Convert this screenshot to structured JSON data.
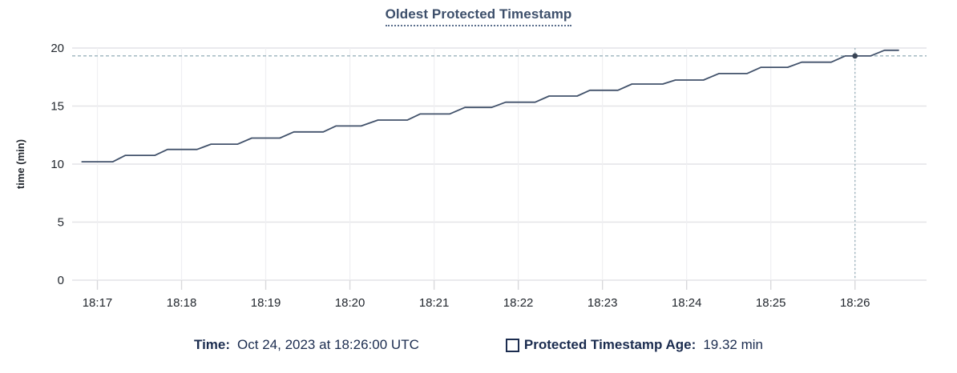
{
  "title": "Oldest Protected Timestamp",
  "legend": {
    "time_label": "Time:",
    "time_value": "Oct 24, 2023 at 18:26:00 UTC",
    "series_swatch_icon": "hollow-square-icon",
    "series_label": "Protected Timestamp Age:",
    "series_value": "19.32 min"
  },
  "colors": {
    "title_text": "#3d4f6b",
    "title_underline": "#5a6e8c",
    "axis_text": "#22272e",
    "grid_horizontal": "#e4e4e7",
    "grid_vertical": "#efeff2",
    "tick_mark": "#d9d9dc",
    "series_line": "#42526b",
    "hover_dot": "#394455",
    "crosshair": "#9bb3bd",
    "legend_text": "#1b2c4f",
    "background": "#ffffff"
  },
  "chart_data": {
    "type": "line",
    "title": "Oldest Protected Timestamp",
    "xlabel": "",
    "ylabel": "time (min)",
    "ylim": [
      0,
      20
    ],
    "y_ticks": [
      0,
      5,
      10,
      15,
      20
    ],
    "x_ticks": [
      "18:17",
      "18:18",
      "18:19",
      "18:20",
      "18:21",
      "18:22",
      "18:23",
      "18:24",
      "18:25",
      "18:26"
    ],
    "x_range": [
      "18:16:42",
      "18:26:51"
    ],
    "grid": true,
    "legend_position": "bottom",
    "series": [
      {
        "name": "Protected Timestamp Age",
        "unit": "min",
        "points": [
          [
            "18:16:49",
            10.2
          ],
          [
            "18:17:11",
            10.2
          ],
          [
            "18:17:20",
            10.75
          ],
          [
            "18:17:41",
            10.75
          ],
          [
            "18:17:50",
            11.26
          ],
          [
            "18:18:11",
            11.26
          ],
          [
            "18:18:21",
            11.72
          ],
          [
            "18:18:40",
            11.72
          ],
          [
            "18:18:50",
            12.24
          ],
          [
            "18:19:10",
            12.24
          ],
          [
            "18:19:20",
            12.77
          ],
          [
            "18:19:41",
            12.77
          ],
          [
            "18:19:50",
            13.28
          ],
          [
            "18:20:08",
            13.28
          ],
          [
            "18:20:20",
            13.79
          ],
          [
            "18:20:41",
            13.79
          ],
          [
            "18:20:50",
            14.32
          ],
          [
            "18:21:11",
            14.32
          ],
          [
            "18:21:22",
            14.88
          ],
          [
            "18:21:41",
            14.88
          ],
          [
            "18:21:51",
            15.33
          ],
          [
            "18:22:12",
            15.33
          ],
          [
            "18:22:22",
            15.86
          ],
          [
            "18:22:42",
            15.86
          ],
          [
            "18:22:51",
            16.36
          ],
          [
            "18:23:11",
            16.36
          ],
          [
            "18:23:21",
            16.9
          ],
          [
            "18:23:43",
            16.9
          ],
          [
            "18:23:52",
            17.24
          ],
          [
            "18:24:12",
            17.24
          ],
          [
            "18:24:23",
            17.8
          ],
          [
            "18:24:43",
            17.8
          ],
          [
            "18:24:53",
            18.34
          ],
          [
            "18:25:12",
            18.34
          ],
          [
            "18:25:22",
            18.78
          ],
          [
            "18:25:43",
            18.78
          ],
          [
            "18:25:53",
            19.32
          ],
          [
            "18:26:11",
            19.32
          ],
          [
            "18:26:21",
            19.81
          ],
          [
            "18:26:31",
            19.81
          ]
        ]
      }
    ],
    "crosshair": {
      "date": "Oct 24, 2023",
      "time": "18:26:00",
      "value": 19.32,
      "value_label": "19.32 min"
    }
  }
}
